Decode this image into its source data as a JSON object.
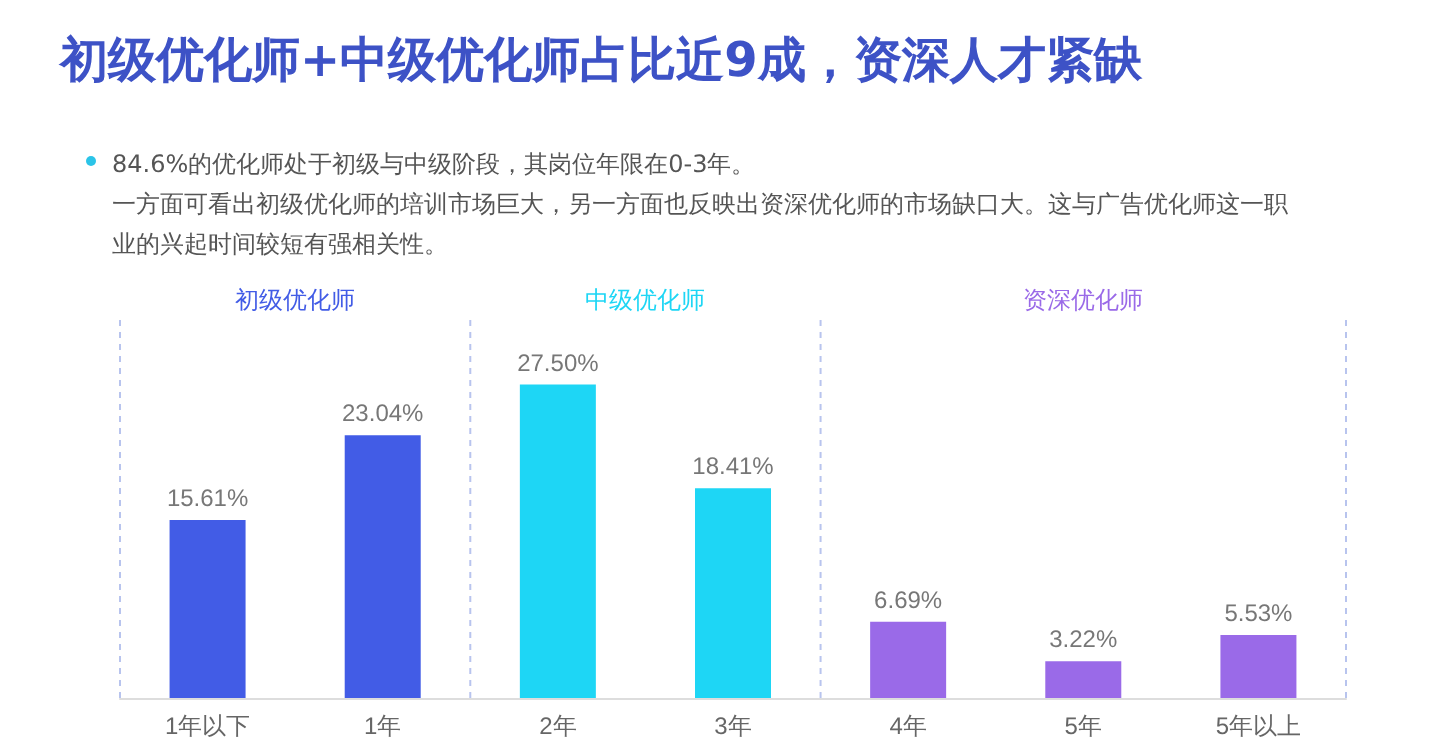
{
  "chart_data": {
    "type": "bar",
    "title": "初级优化师+中级优化师占比近9成，资深人才紧缺",
    "subtitle": "84.6%的优化师处于初级与中级阶段，其岗位年限在0-3年。",
    "annotations": [
      "一方面可看出初级优化师的培训市场巨大，另一方面也反映出资深优化师的市场缺口大。这与广告优化师这一职业的兴起时间较短有强相关性。"
    ],
    "categories": [
      "1年以下",
      "1年",
      "2年",
      "3年",
      "4年",
      "5年",
      "5年以上"
    ],
    "stacked": true,
    "series": [
      {
        "name": "初级优化师",
        "color": "#425ce6",
        "values": [
          15.61,
          23.04,
          null,
          null,
          null,
          null,
          null
        ],
        "value_labels": [
          "15.61%",
          "23.04%",
          null,
          null,
          null,
          null,
          null
        ]
      },
      {
        "name": "中级优化师",
        "color": "#1ed6f5",
        "values": [
          null,
          null,
          27.5,
          18.41,
          null,
          null,
          null
        ],
        "value_labels": [
          null,
          null,
          "27.50%",
          "18.41%",
          null,
          null,
          null
        ]
      },
      {
        "name": "资深优化师",
        "color": "#9a6ae8",
        "values": [
          null,
          null,
          null,
          null,
          6.69,
          3.22,
          5.53
        ],
        "value_labels": [
          null,
          null,
          null,
          null,
          "6.69%",
          "3.22%",
          "5.53%"
        ]
      }
    ],
    "legend": false,
    "grid": false
  }
}
